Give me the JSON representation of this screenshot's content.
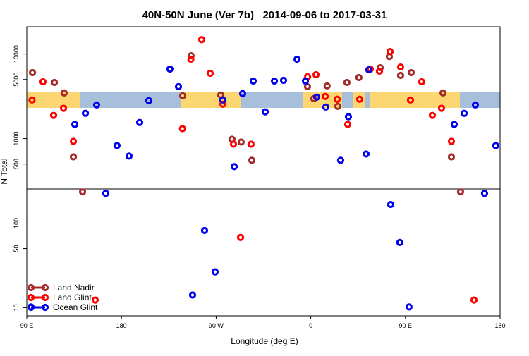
{
  "chart_data": {
    "type": "scatter",
    "title": "40N-50N June (Ver 7b)   2014-09-06 to 2017-03-31",
    "x_label": "Longitude (deg E)",
    "y_label": "N Total",
    "log_y": true,
    "legend": "bottom-left",
    "xlim": [
      90,
      540
    ],
    "xticks": [
      {
        "value": 90,
        "label": "90 E"
      },
      180,
      {
        "value": 270,
        "label": "90 W"
      },
      {
        "value": 360,
        "label": "0"
      },
      {
        "value": 450,
        "label": "90 E"
      },
      {
        "value": 540,
        "label": "180"
      }
    ],
    "ylim": [
      8,
      21000
    ],
    "yticks": [
      10,
      50,
      100,
      500,
      1000,
      5000,
      10000
    ],
    "series": [
      {
        "name": "Land Nadir",
        "color": "#a52a2a",
        "x": [
          95.4,
          116.2,
          125.5,
          134.3,
          143,
          238.2,
          246.2,
          274.4,
          285.1,
          293.8,
          303.9,
          356.9,
          362.9,
          375.6,
          385.7,
          394.4,
          405.8,
          426,
          434.7,
          445.4,
          455.5,
          485.7,
          493.7,
          502.4
        ],
        "values": [
          6030,
          4610,
          3460,
          608,
          234,
          3210,
          9530,
          3270,
          982,
          910,
          553,
          4110,
          2970,
          4190,
          2410,
          4610,
          5270,
          6890,
          9350,
          5580,
          6030,
          3460,
          608,
          234
        ]
      },
      {
        "name": "Land Glint",
        "color": "#ff0000",
        "x": [
          95,
          105.4,
          115.5,
          124.9,
          134.3,
          155,
          238,
          246,
          256.3,
          264.4,
          276.4,
          286.5,
          293.2,
          303.2,
          357,
          365,
          373.7,
          385.1,
          395.1,
          406.5,
          416.6,
          425.3,
          435.4,
          445.4,
          454.8,
          465.5,
          475.6,
          484.3,
          493.7,
          515.2
        ],
        "values": [
          2860,
          4700,
          1880,
          2280,
          927,
          12.3,
          1310,
          8670,
          14800,
          5910,
          2550,
          859,
          67.6,
          859,
          5370,
          5690,
          3150,
          2920,
          1470,
          2920,
          6630,
          6270,
          10700,
          7020,
          2860,
          4700,
          1880,
          2280,
          927,
          12.3
        ]
      },
      {
        "name": "Ocean Glint",
        "color": "#0000ee",
        "x": [
          94,
          135.6,
          145.7,
          156.4,
          165.1,
          175.8,
          187.2,
          197.3,
          206,
          226.1,
          234.2,
          247.6,
          259,
          269,
          276.4,
          287.2,
          295.2,
          305.3,
          316.7,
          325.4,
          334.1,
          346.9,
          354.9,
          365.6,
          374.3,
          388.4,
          395.8,
          412.6,
          415.2,
          436,
          444.7,
          453.4,
          496.4,
          505.8,
          516.5,
          525.2,
          535.9
        ],
        "values": [
          10.2,
          1470,
          1990,
          2500,
          225,
          826,
          621,
          1550,
          2810,
          6630,
          4110,
          14.1,
          81.8,
          26.5,
          2860,
          466,
          3400,
          4790,
          2070,
          4790,
          4880,
          8670,
          4790,
          3090,
          2360,
          553,
          1810,
          657,
          6500,
          166,
          59.1,
          10.2,
          1470,
          1990,
          2500,
          225,
          826
        ]
      }
    ]
  }
}
